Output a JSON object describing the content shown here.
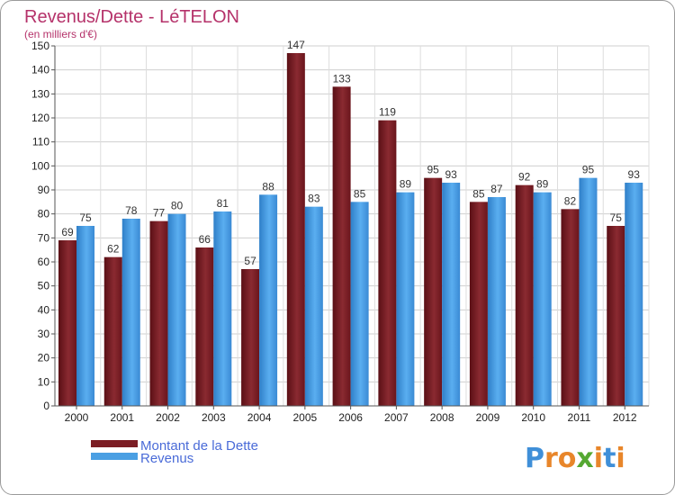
{
  "title": "Revenus/Dette - LéTELON",
  "subtitle": "(en milliers d'€)",
  "logo": {
    "letters": [
      "P",
      "r",
      "o",
      "x",
      "i",
      "t",
      "i"
    ],
    "colors": [
      "#3f8fd8",
      "#e8862a",
      "#e8862a",
      "#55a832",
      "#e8862a",
      "#3f8fd8",
      "#e8862a"
    ]
  },
  "chart_data": {
    "type": "bar",
    "categories": [
      "2000",
      "2001",
      "2002",
      "2003",
      "2004",
      "2005",
      "2006",
      "2007",
      "2008",
      "2009",
      "2010",
      "2011",
      "2012"
    ],
    "series": [
      {
        "name": "Montant de la Dette",
        "color": "#7b1d24",
        "values": [
          69,
          62,
          77,
          66,
          57,
          147,
          133,
          119,
          95,
          85,
          92,
          82,
          75
        ]
      },
      {
        "name": "Revenus",
        "color": "#4a9fe3",
        "values": [
          75,
          78,
          80,
          81,
          88,
          83,
          85,
          89,
          93,
          87,
          89,
          95,
          93
        ]
      }
    ],
    "yticks": [
      0,
      10,
      20,
      30,
      40,
      50,
      60,
      70,
      80,
      90,
      100,
      110,
      120,
      130,
      140,
      150
    ],
    "ylim": [
      0,
      150
    ],
    "grid": true,
    "legend_position": "bottom-left"
  }
}
